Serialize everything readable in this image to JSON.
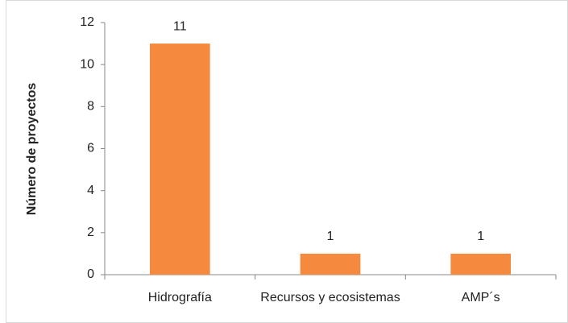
{
  "chart_data": {
    "type": "bar",
    "y_label": "Número de proyectos",
    "categories": [
      "Hidrografía",
      "Recursos y ecosistemas",
      "AMP´s"
    ],
    "values": [
      11,
      1,
      1
    ],
    "color": "#f58a3f",
    "ylim": [
      0,
      12
    ],
    "yticks": [
      0,
      2,
      4,
      6,
      8,
      10,
      12
    ],
    "grid": false,
    "data_labels": true
  }
}
